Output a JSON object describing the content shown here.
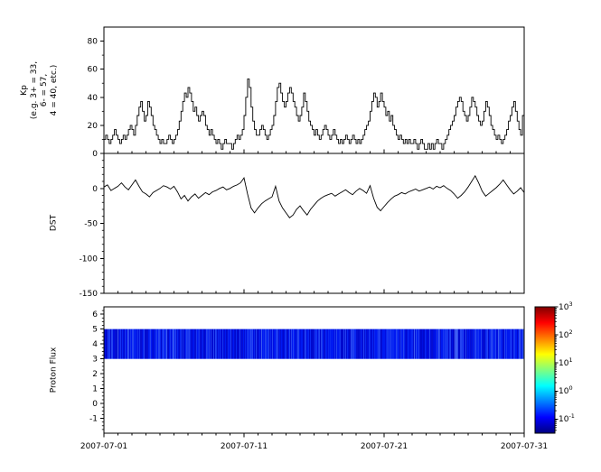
{
  "figure": {
    "background": "#ffffff",
    "x_axis": {
      "range_days": [
        0,
        30
      ],
      "tick_days": [
        0,
        10,
        20,
        30
      ],
      "tick_labels": [
        "2007-07-01",
        "2007-07-11",
        "2007-07-21",
        "2007-07-31"
      ],
      "minor_tick_every_days": 1
    },
    "colors": {
      "line": "#000000",
      "frame": "#000000",
      "band_blue": "#0016e0"
    }
  },
  "chart_data": [
    {
      "id": "kp",
      "type": "line",
      "line_style": "step",
      "ylabel_lines": [
        "Kp",
        "(e.g. 3+ = 33,",
        "6- = 57,",
        "4 = 40, etc.)"
      ],
      "ylim": [
        0,
        90
      ],
      "yticks": [
        0,
        20,
        40,
        60,
        80
      ],
      "y_minor_step": 10,
      "start_date": "2007-07-01",
      "points_per_day": 8,
      "values": [
        10,
        13,
        10,
        7,
        10,
        13,
        17,
        13,
        10,
        7,
        10,
        13,
        10,
        13,
        17,
        20,
        17,
        13,
        20,
        27,
        33,
        37,
        30,
        23,
        27,
        37,
        33,
        27,
        20,
        17,
        13,
        10,
        7,
        10,
        7,
        7,
        10,
        13,
        10,
        7,
        10,
        13,
        17,
        23,
        30,
        37,
        43,
        40,
        47,
        43,
        37,
        30,
        33,
        27,
        23,
        27,
        30,
        27,
        20,
        17,
        13,
        17,
        13,
        10,
        7,
        10,
        7,
        3,
        7,
        10,
        7,
        7,
        7,
        3,
        7,
        10,
        13,
        10,
        13,
        17,
        27,
        40,
        53,
        47,
        33,
        23,
        17,
        13,
        13,
        17,
        20,
        17,
        13,
        10,
        13,
        17,
        20,
        27,
        37,
        47,
        50,
        43,
        37,
        33,
        37,
        43,
        47,
        43,
        37,
        33,
        27,
        23,
        27,
        33,
        43,
        37,
        30,
        23,
        20,
        17,
        13,
        17,
        13,
        10,
        13,
        17,
        20,
        17,
        13,
        10,
        13,
        17,
        13,
        10,
        7,
        10,
        7,
        10,
        13,
        10,
        7,
        10,
        13,
        10,
        7,
        10,
        7,
        10,
        13,
        17,
        20,
        23,
        30,
        37,
        43,
        40,
        33,
        37,
        43,
        37,
        33,
        27,
        30,
        23,
        27,
        20,
        17,
        13,
        10,
        13,
        10,
        7,
        10,
        7,
        10,
        7,
        7,
        10,
        7,
        3,
        7,
        10,
        7,
        3,
        3,
        7,
        3,
        7,
        3,
        7,
        10,
        7,
        7,
        3,
        7,
        10,
        13,
        17,
        20,
        23,
        27,
        33,
        37,
        40,
        37,
        30,
        27,
        23,
        27,
        33,
        40,
        37,
        33,
        27,
        23,
        20,
        23,
        30,
        37,
        33,
        27,
        20,
        17,
        13,
        10,
        13,
        10,
        7,
        10,
        13,
        17,
        23,
        27,
        33,
        37,
        30,
        23,
        17,
        13,
        27,
        33,
        27,
        23,
        17,
        13,
        10,
        13,
        17
      ]
    },
    {
      "id": "dst",
      "type": "line",
      "line_style": "linear",
      "ylabel": "DST",
      "ylim": [
        -150,
        50
      ],
      "yticks": [
        0,
        -50,
        -100,
        -150
      ],
      "y_minor_step": 10,
      "start_date": "2007-07-01",
      "points_per_day": 4,
      "values": [
        2,
        5,
        -3,
        0,
        3,
        8,
        2,
        -2,
        5,
        12,
        3,
        -5,
        -8,
        -12,
        -6,
        -3,
        0,
        4,
        2,
        -1,
        3,
        -5,
        -15,
        -10,
        -18,
        -12,
        -8,
        -14,
        -10,
        -6,
        -9,
        -5,
        -3,
        0,
        2,
        -2,
        0,
        3,
        5,
        8,
        15,
        -8,
        -28,
        -35,
        -28,
        -22,
        -18,
        -15,
        -12,
        3,
        -18,
        -28,
        -35,
        -42,
        -38,
        -30,
        -25,
        -32,
        -38,
        -30,
        -24,
        -18,
        -14,
        -11,
        -9,
        -7,
        -11,
        -8,
        -5,
        -2,
        -6,
        -9,
        -4,
        0,
        -3,
        -7,
        4,
        -14,
        -27,
        -32,
        -26,
        -20,
        -15,
        -11,
        -9,
        -6,
        -8,
        -5,
        -3,
        -1,
        -4,
        -2,
        0,
        2,
        -1,
        3,
        1,
        4,
        0,
        -3,
        -8,
        -14,
        -10,
        -5,
        2,
        10,
        18,
        8,
        -4,
        -11,
        -7,
        -3,
        1,
        6,
        12,
        5,
        -2,
        -8,
        -4,
        1,
        -6,
        -9,
        -4,
        -1
      ]
    },
    {
      "id": "proton_flux",
      "type": "heatmap",
      "ylabel": "Proton Flux",
      "ylim": [
        -2,
        6.5
      ],
      "yticks": [
        -1,
        0,
        1,
        2,
        3,
        4,
        5,
        6
      ],
      "y_minor_step": 0.25,
      "band": {
        "y_from": 3,
        "y_to": 5,
        "base_color": "#0016e0",
        "description": "continuous blue spectrogram band spanning full time range, flux ~0.1-1"
      },
      "colorbar": {
        "scale": "log",
        "exp_range": [
          -1.5,
          3
        ],
        "colormap": "jet",
        "tick_exponents": [
          3,
          2,
          1,
          0,
          -1
        ],
        "ticks": [
          {
            "base": "10",
            "exp": "3"
          },
          {
            "base": "10",
            "exp": "2"
          },
          {
            "base": "10",
            "exp": "1"
          },
          {
            "base": "10",
            "exp": "0"
          },
          {
            "base": "10",
            "exp": "-1"
          }
        ]
      }
    }
  ]
}
